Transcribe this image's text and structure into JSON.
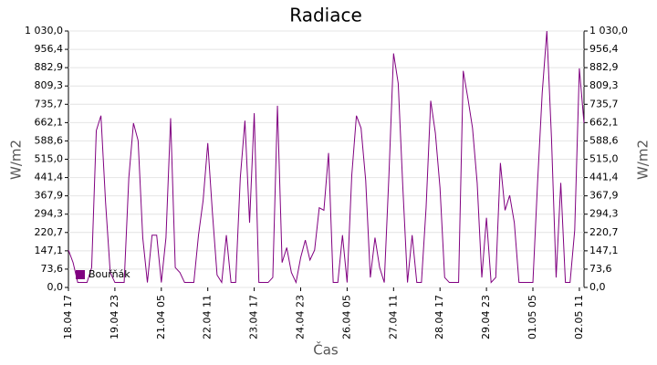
{
  "chart_data": {
    "type": "line",
    "title": "Radiace",
    "xlabel": "Čas",
    "ylabel": "W/m2",
    "categories": [
      "18.04 17",
      null,
      null,
      null,
      null,
      null,
      null,
      null,
      null,
      null,
      "19.04 23",
      null,
      null,
      null,
      null,
      null,
      null,
      null,
      null,
      null,
      "21.04 05",
      null,
      null,
      null,
      null,
      null,
      null,
      null,
      null,
      null,
      "22.04 11",
      null,
      null,
      null,
      null,
      null,
      null,
      null,
      null,
      null,
      "23.04 17",
      null,
      null,
      null,
      null,
      null,
      null,
      null,
      null,
      null,
      "24.04 23",
      null,
      null,
      null,
      null,
      null,
      null,
      null,
      null,
      null,
      "26.04 05",
      null,
      null,
      null,
      null,
      null,
      null,
      null,
      null,
      null,
      "27.04 11",
      null,
      null,
      null,
      null,
      null,
      null,
      null,
      null,
      null,
      "28.04 17",
      null,
      null,
      null,
      null,
      null,
      null,
      null,
      null,
      null,
      "29.04 23",
      null,
      null,
      null,
      null,
      null,
      null,
      null,
      null,
      null,
      "01.05 05",
      null,
      null,
      null,
      null,
      null,
      null,
      null,
      null,
      null,
      "02.05 11",
      null
    ],
    "series": [
      {
        "name": "Bouřňák",
        "color": "#800080",
        "values": [
          150,
          100,
          20,
          20,
          20,
          80,
          630,
          690,
          340,
          60,
          20,
          20,
          20,
          440,
          660,
          590,
          200,
          20,
          210,
          210,
          20,
          200,
          680,
          80,
          60,
          20,
          20,
          20,
          210,
          350,
          580,
          300,
          50,
          20,
          210,
          20,
          20,
          440,
          670,
          260,
          700,
          20,
          20,
          20,
          40,
          730,
          100,
          160,
          60,
          20,
          120,
          190,
          110,
          150,
          320,
          310,
          540,
          20,
          20,
          210,
          20,
          450,
          690,
          640,
          430,
          40,
          200,
          80,
          20,
          450,
          940,
          820,
          400,
          20,
          210,
          20,
          20,
          320,
          750,
          620,
          400,
          40,
          20,
          20,
          20,
          870,
          760,
          640,
          420,
          40,
          280,
          20,
          40,
          500,
          310,
          370,
          260,
          20,
          20,
          20,
          20,
          420,
          780,
          1030,
          600,
          40,
          420,
          20,
          20,
          230,
          880,
          660
        ]
      }
    ],
    "ylim": [
      0,
      1030
    ],
    "yticks": [
      {
        "value": 0,
        "label": "0,0"
      },
      {
        "value": 73.6,
        "label": "73,6"
      },
      {
        "value": 147.1,
        "label": "147,1"
      },
      {
        "value": 220.7,
        "label": "220,7"
      },
      {
        "value": 294.3,
        "label": "294,3"
      },
      {
        "value": 367.9,
        "label": "367,9"
      },
      {
        "value": 441.4,
        "label": "441,4"
      },
      {
        "value": 515,
        "label": "515,0"
      },
      {
        "value": 588.6,
        "label": "588,6"
      },
      {
        "value": 662.1,
        "label": "662,1"
      },
      {
        "value": 735.7,
        "label": "735,7"
      },
      {
        "value": 809.3,
        "label": "809,3"
      },
      {
        "value": 882.9,
        "label": "882,9"
      },
      {
        "value": 956.4,
        "label": "956,4"
      },
      {
        "value": 1030,
        "label": "1 030,0"
      }
    ],
    "grid": true,
    "legend": "lower left"
  }
}
